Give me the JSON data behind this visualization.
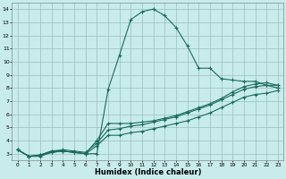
{
  "xlabel": "Humidex (Indice chaleur)",
  "bg_color": "#c8ecec",
  "grid_color": "#9bbfbf",
  "line_color": "#1a6b5a",
  "xlim": [
    -0.5,
    23.5
  ],
  "ylim": [
    2.5,
    14.5
  ],
  "xticks": [
    0,
    1,
    2,
    3,
    4,
    5,
    6,
    7,
    8,
    9,
    10,
    11,
    12,
    13,
    14,
    15,
    16,
    17,
    18,
    19,
    20,
    21,
    22,
    23
  ],
  "yticks": [
    3,
    4,
    5,
    6,
    7,
    8,
    9,
    10,
    11,
    12,
    13,
    14
  ],
  "series": [
    [
      3.3,
      2.8,
      2.8,
      3.1,
      3.2,
      3.1,
      3.0,
      3.0,
      7.9,
      10.5,
      13.2,
      13.8,
      14.0,
      13.5,
      12.6,
      11.2,
      9.5,
      9.5,
      8.7,
      8.6,
      8.5,
      8.5,
      8.2,
      8.2
    ],
    [
      3.3,
      2.8,
      2.9,
      3.1,
      3.2,
      3.1,
      3.0,
      4.0,
      5.3,
      5.3,
      5.3,
      5.4,
      5.5,
      5.7,
      5.9,
      6.2,
      6.5,
      6.8,
      7.2,
      7.7,
      8.1,
      8.3,
      8.4,
      8.2
    ],
    [
      3.3,
      2.8,
      2.9,
      3.2,
      3.3,
      3.2,
      3.1,
      3.8,
      4.8,
      4.9,
      5.1,
      5.2,
      5.4,
      5.6,
      5.8,
      6.1,
      6.4,
      6.7,
      7.1,
      7.5,
      7.9,
      8.1,
      8.2,
      8.0
    ],
    [
      3.3,
      2.8,
      2.9,
      3.2,
      3.2,
      3.1,
      3.0,
      3.6,
      4.4,
      4.4,
      4.6,
      4.7,
      4.9,
      5.1,
      5.3,
      5.5,
      5.8,
      6.1,
      6.5,
      6.9,
      7.3,
      7.5,
      7.6,
      7.8
    ]
  ]
}
